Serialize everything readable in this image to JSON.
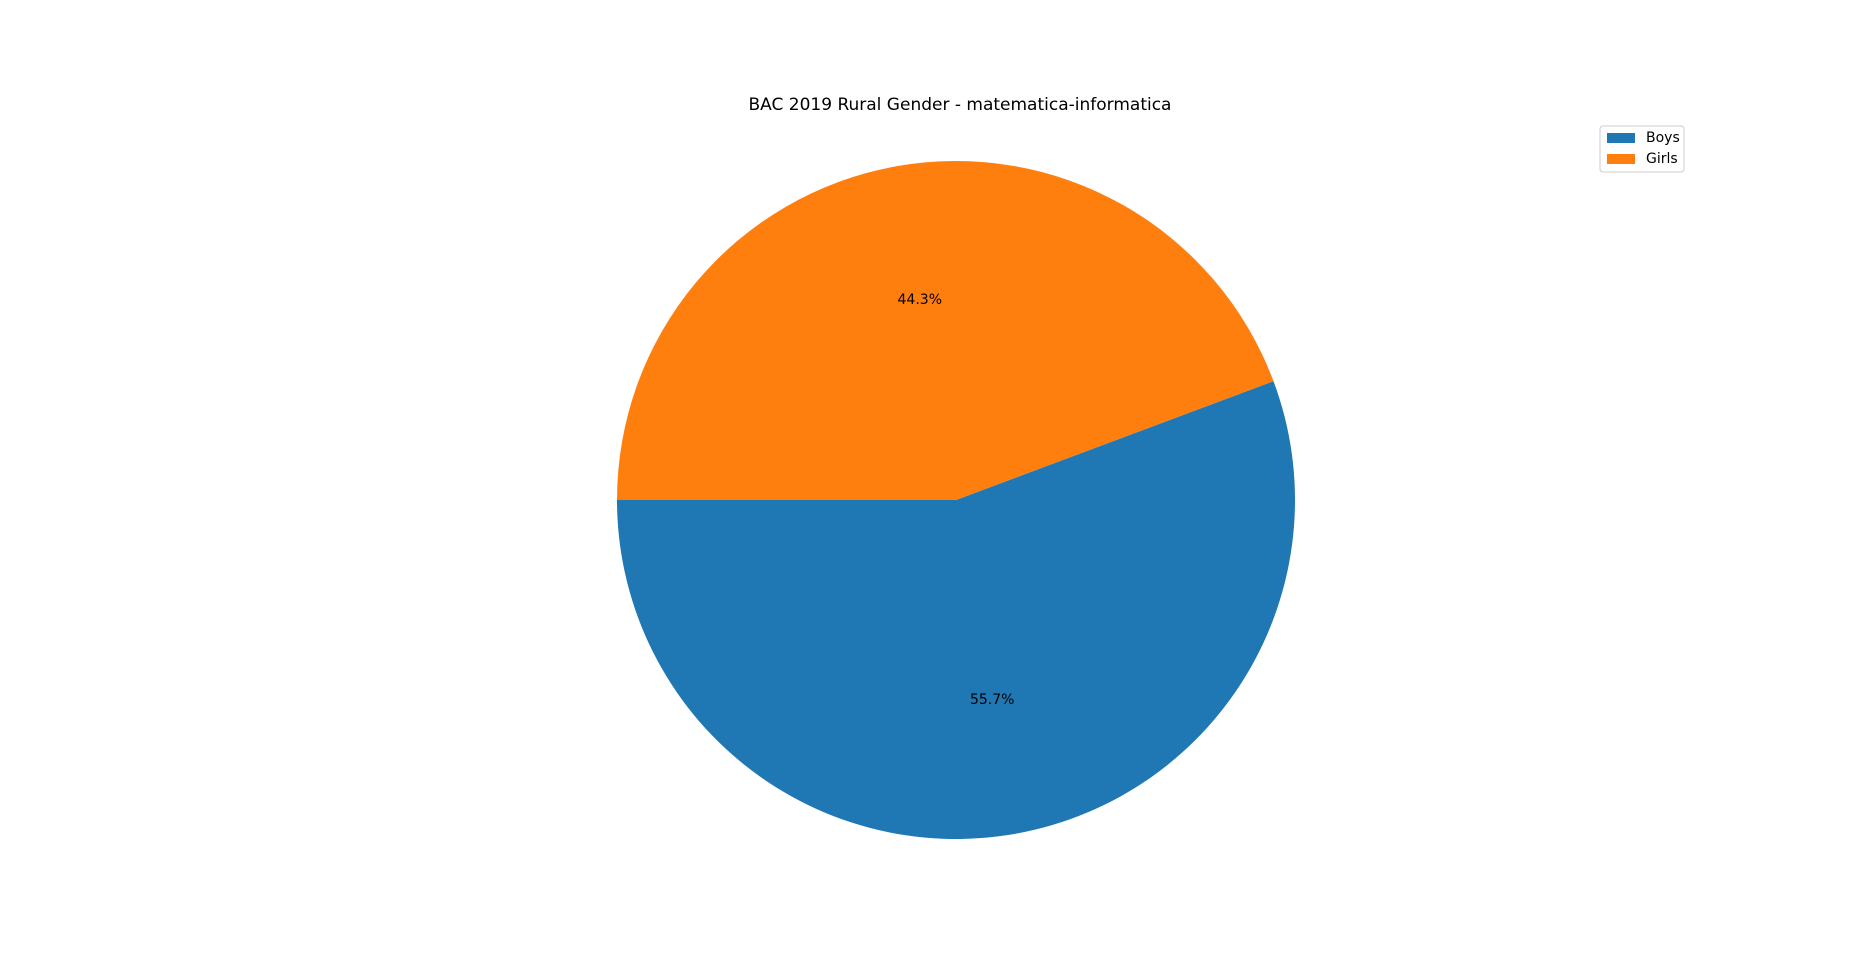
{
  "chart_data": {
    "type": "pie",
    "title": "BAC 2019 Rural Gender - matematica-informatica",
    "slices": [
      {
        "label": "Boys",
        "value": 55.7,
        "pct_label": "55.7%",
        "color": "#1f77b4"
      },
      {
        "label": "Girls",
        "value": 44.3,
        "pct_label": "44.3%",
        "color": "#ff7f0e"
      }
    ],
    "start_angle_deg": 180,
    "direction": "counterclockwise",
    "legend_position": "top-right"
  }
}
